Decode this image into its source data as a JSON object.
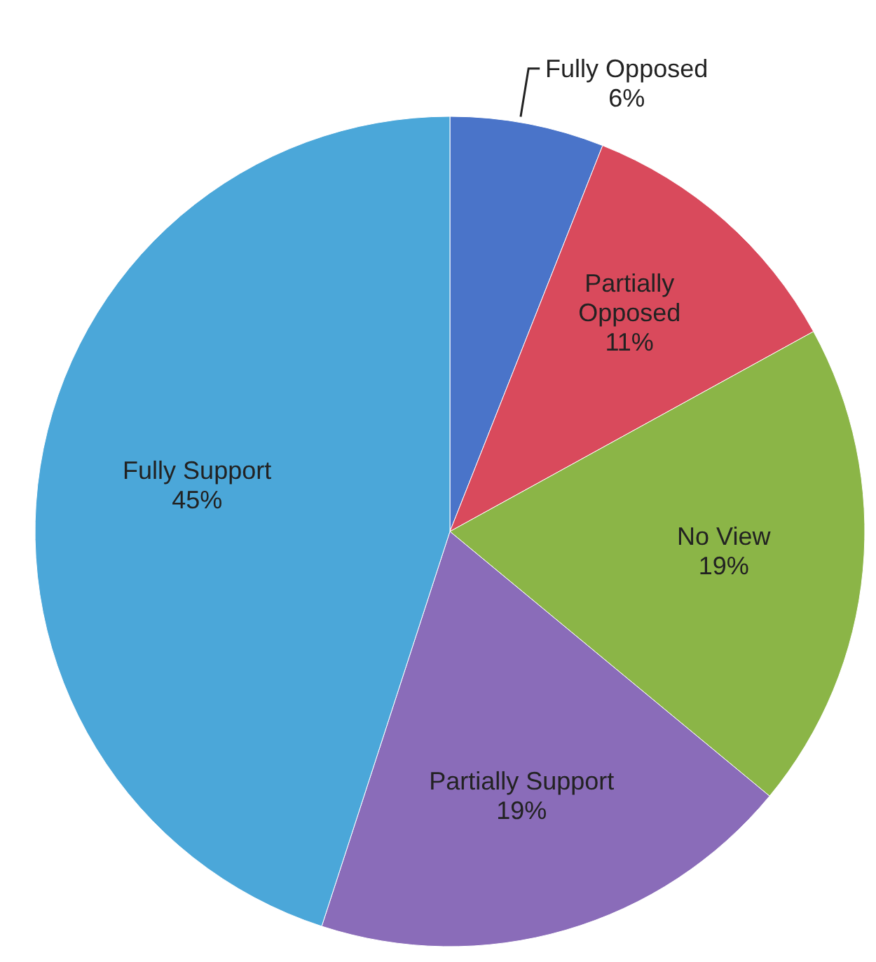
{
  "chart_data": {
    "type": "pie",
    "categories": [
      "Fully Opposed",
      "Partially Opposed",
      "No View",
      "Partially Support",
      "Fully Support"
    ],
    "values": [
      6,
      11,
      19,
      19,
      45
    ],
    "colors": [
      "#4a74c9",
      "#d94a5c",
      "#8bb547",
      "#8a6cb9",
      "#4ba7d9"
    ],
    "value_labels": [
      "6%",
      "11%",
      "19%",
      "19%",
      "45%"
    ]
  }
}
